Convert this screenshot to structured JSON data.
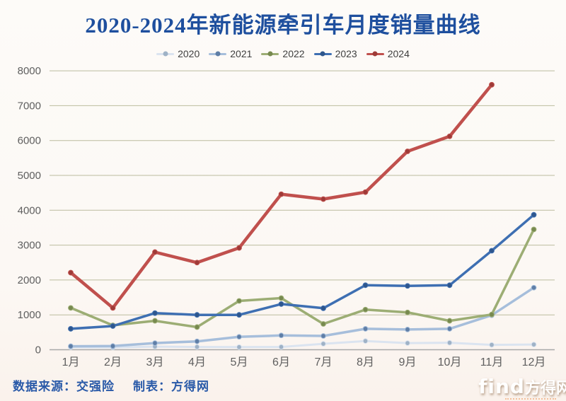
{
  "title": "2020-2024年新能源牵引车月度销量曲线",
  "footer": {
    "source": "数据来源：交强险",
    "credit": "制表：方得网"
  },
  "watermark": {
    "find": "find",
    "brand": "方得网"
  },
  "colors": {
    "title_blue": "#1e4f9e",
    "footer_blue": "#2a5aa8",
    "gridline": "#bcbc9e",
    "axis_line": "#a8a8a8",
    "tick_text": "#5f5f5f",
    "legend_text": "#3f3f3f"
  },
  "chart_data": {
    "type": "line",
    "title": "2020-2024年新能源牵引车月度销量曲线",
    "categories": [
      "1月",
      "2月",
      "3月",
      "4月",
      "5月",
      "6月",
      "7月",
      "8月",
      "9月",
      "10月",
      "11月",
      "12月"
    ],
    "y_ticks": [
      0,
      1000,
      2000,
      3000,
      4000,
      5000,
      6000,
      7000,
      8000
    ],
    "ylim": [
      0,
      8000
    ],
    "grid": true,
    "legend_position": "top",
    "series": [
      {
        "name": "2020",
        "color": "#dbe4f0",
        "marker": "#9fb2c6",
        "width": 3,
        "values": [
          70,
          65,
          90,
          80,
          75,
          80,
          170,
          250,
          190,
          200,
          140,
          150
        ]
      },
      {
        "name": "2021",
        "color": "#a6bedb",
        "marker": "#5f7ea6",
        "width": 3.5,
        "values": [
          100,
          105,
          190,
          240,
          370,
          410,
          395,
          600,
          580,
          600,
          990,
          1780
        ]
      },
      {
        "name": "2022",
        "color": "#9cad74",
        "marker": "#77894f",
        "width": 3.5,
        "values": [
          1200,
          700,
          830,
          650,
          1400,
          1480,
          740,
          1150,
          1070,
          830,
          1010,
          3450
        ]
      },
      {
        "name": "2023",
        "color": "#3e6fb2",
        "marker": "#2e568c",
        "width": 3.5,
        "values": [
          600,
          680,
          1050,
          1000,
          1000,
          1310,
          1190,
          1850,
          1830,
          1850,
          2840,
          3870
        ]
      },
      {
        "name": "2024",
        "color": "#c0504d",
        "marker": "#9e3b38",
        "width": 4.5,
        "values": [
          2210,
          1200,
          2800,
          2500,
          2920,
          4460,
          4320,
          4520,
          5690,
          6120,
          7600,
          null
        ]
      }
    ]
  }
}
